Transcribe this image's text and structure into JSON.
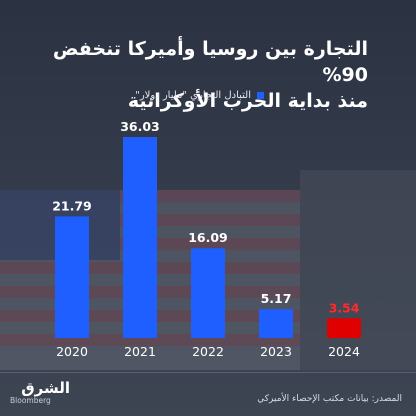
{
  "header": {
    "title_line1": "التجارة بين روسيا وأميركا تنخفض 90%",
    "title_line2": "منذ بداية الحرب الأوكرانية"
  },
  "legend": {
    "label": "التبادل التجاري \"مليار دولار\""
  },
  "chart_data": {
    "type": "bar",
    "categories": [
      "2020",
      "2021",
      "2022",
      "2023",
      "2024"
    ],
    "values": [
      21.79,
      36.03,
      16.09,
      5.17,
      3.54
    ],
    "value_labels": [
      "21.79",
      "36.03",
      "16.09",
      "5.17",
      "3.54"
    ],
    "title": "التجارة بين روسيا وأميركا تنخفض 90% منذ بداية الحرب الأوكرانية",
    "legend": "التبادل التجاري \"مليار دولار\"",
    "ylim": [
      0,
      36.03
    ],
    "grid": false,
    "legend_position": "top",
    "colors": {
      "bar": "#1f5fff",
      "highlight": "#e00000",
      "label": "#ffffff",
      "highlight_label": "#ff2b2b"
    },
    "highlight_index": 4
  },
  "footer": {
    "source": "المصدر: بيانات مكتب الإحصاء الأميركي",
    "logo_main": "الشرق",
    "logo_sub": "Bloomberg"
  }
}
